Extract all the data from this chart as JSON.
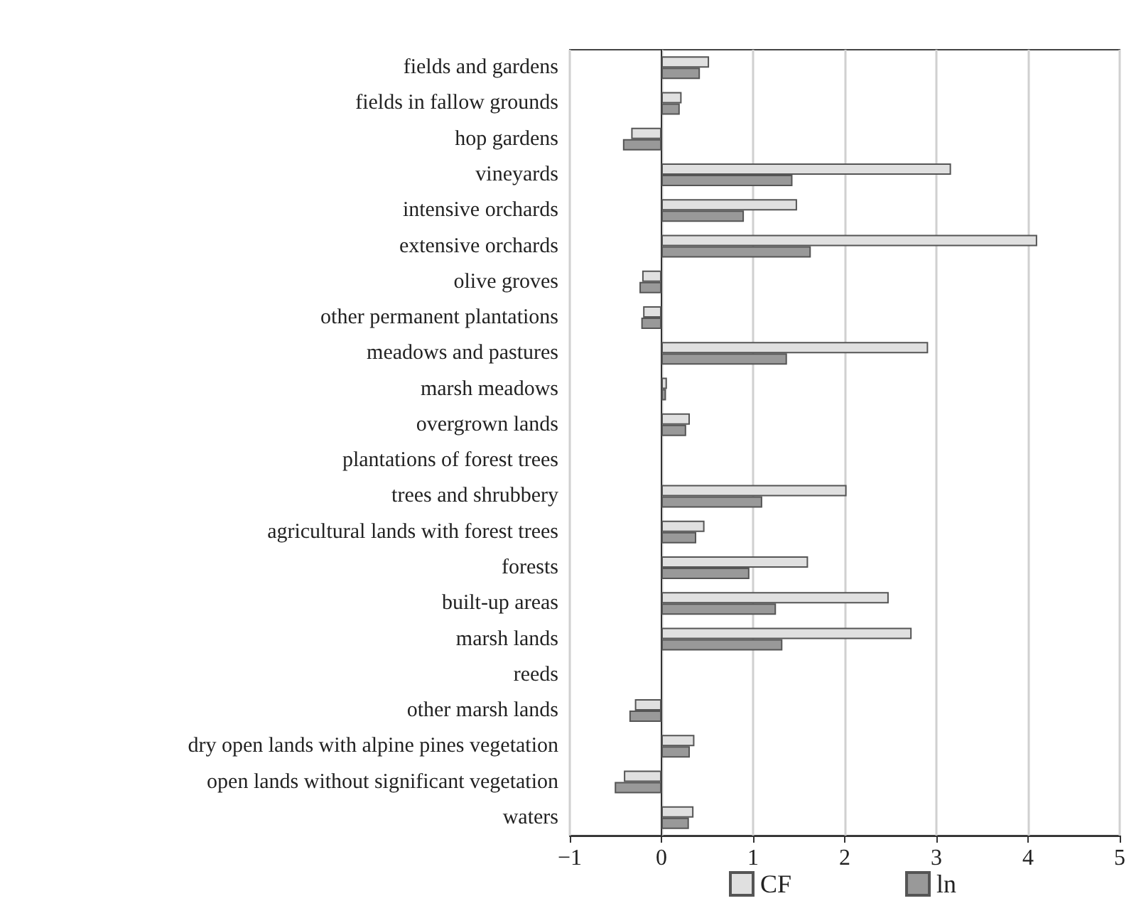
{
  "chart_data": {
    "type": "bar",
    "orientation": "horizontal",
    "categories": [
      "fields and gardens",
      "fields in fallow grounds",
      "hop gardens",
      "vineyards",
      "intensive orchards",
      "extensive orchards",
      "olive groves",
      "other permanent plantations",
      "meadows and pastures",
      "marsh meadows",
      "overgrown lands",
      "plantations of forest trees",
      "trees and shrubbery",
      "agricultural lands with forest trees",
      "forests",
      "built-up areas",
      "marsh lands",
      "reeds",
      "other marsh lands",
      "dry open lands with alpine pines vegetation",
      "open lands without significant vegetation",
      "waters"
    ],
    "series": [
      {
        "name": "CF",
        "color": "#e0e0e0",
        "values": [
          0.52,
          0.22,
          -0.33,
          3.16,
          1.48,
          4.1,
          -0.21,
          -0.2,
          2.91,
          0.06,
          0.31,
          null,
          2.02,
          0.47,
          1.6,
          2.48,
          2.73,
          null,
          -0.29,
          0.36,
          -0.41,
          0.35
        ]
      },
      {
        "name": "ln",
        "color": "#999999",
        "values": [
          0.42,
          0.2,
          -0.42,
          1.43,
          0.9,
          1.63,
          -0.24,
          -0.22,
          1.37,
          0.05,
          0.27,
          null,
          1.1,
          0.38,
          0.96,
          1.25,
          1.32,
          null,
          -0.35,
          0.31,
          -0.51,
          0.3
        ]
      }
    ],
    "xlim": [
      -1,
      5
    ],
    "xticks": [
      {
        "value": -1,
        "label": "−1"
      },
      0,
      1,
      2,
      3,
      4,
      5
    ],
    "grid": "x",
    "legend": "bottom"
  }
}
